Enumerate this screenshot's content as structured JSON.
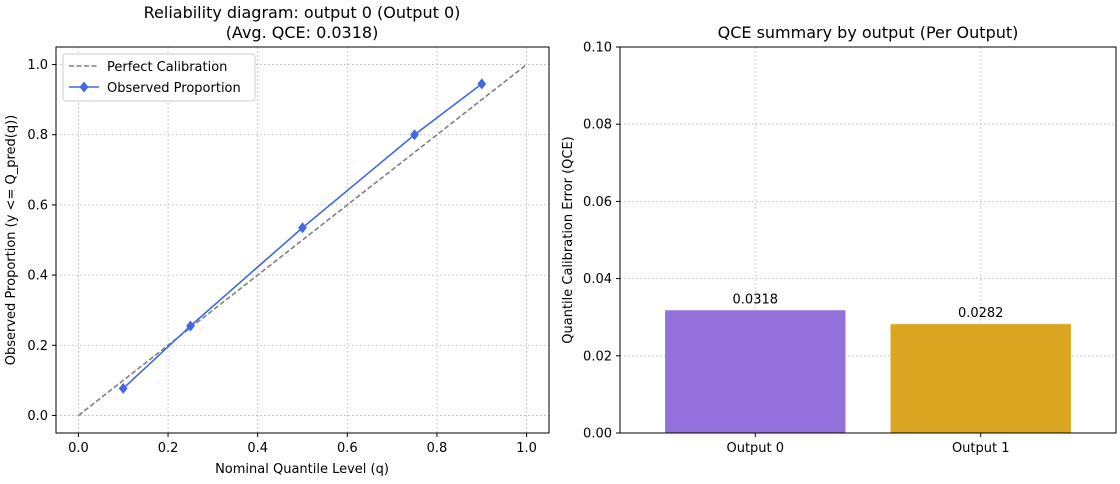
{
  "chart_data": [
    {
      "type": "line",
      "title": "Reliability diagram: output 0 (Output 0)",
      "subtitle": "(Avg. QCE: 0.0318)",
      "xlabel": "Nominal Quantile Level (q)",
      "ylabel": "Observed Proportion (y <= Q_pred(q))",
      "xlim": [
        -0.05,
        1.05
      ],
      "ylim": [
        -0.05,
        1.05
      ],
      "xticks": [
        "0.0",
        "0.2",
        "0.4",
        "0.6",
        "0.8",
        "1.0"
      ],
      "yticks": [
        "0.0",
        "0.2",
        "0.4",
        "0.6",
        "0.8",
        "1.0"
      ],
      "grid": true,
      "legend_position": "upper-left",
      "series": [
        {
          "name": "Perfect Calibration",
          "x": [
            0.0,
            1.0
          ],
          "y": [
            0.0,
            1.0
          ],
          "color": "#808080",
          "style": "dashed"
        },
        {
          "name": "Observed Proportion",
          "x": [
            0.1,
            0.25,
            0.5,
            0.75,
            0.9
          ],
          "y": [
            0.077,
            0.255,
            0.535,
            0.8,
            0.945
          ],
          "color": "#4169e1",
          "marker": "diamond"
        }
      ]
    },
    {
      "type": "bar",
      "title": "QCE summary by output (Per Output)",
      "xlabel": "",
      "ylabel": "Quantile Calibration Error (QCE)",
      "categories": [
        "Output 0",
        "Output 1"
      ],
      "values": [
        0.0318,
        0.0282
      ],
      "value_labels": [
        "0.0318",
        "0.0282"
      ],
      "colors": [
        "#9370db",
        "#daa520"
      ],
      "ylim": [
        0,
        0.1
      ],
      "yticks": [
        "0.00",
        "0.02",
        "0.04",
        "0.06",
        "0.08",
        "0.10"
      ],
      "grid": true
    }
  ]
}
